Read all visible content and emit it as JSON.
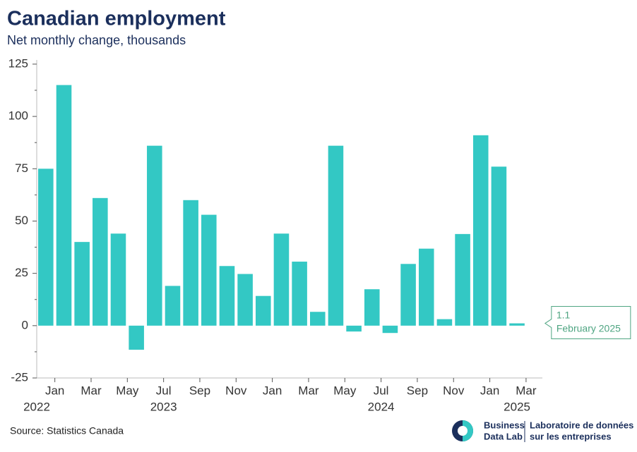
{
  "chart_data": {
    "type": "bar",
    "title": "Canadian employment",
    "subtitle": "Net monthly change, thousands",
    "x": [
      0,
      1,
      2,
      3,
      4,
      5,
      6,
      7,
      8,
      9,
      10,
      11,
      12,
      13,
      14,
      15,
      16,
      17,
      18,
      19,
      20,
      21,
      22,
      23,
      24,
      25,
      26
    ],
    "values": [
      75,
      115,
      40,
      61,
      44,
      -11.5,
      86,
      19,
      60,
      53,
      28.5,
      24.7,
      14.2,
      44,
      30.6,
      6.6,
      86,
      -2.8,
      17.4,
      -3.5,
      29.5,
      36.8,
      3.1,
      43.8,
      91,
      76,
      1.1
    ],
    "color": "#33c8c4",
    "xlim": [
      -0.5,
      27.4
    ],
    "xticks": [
      {
        "value": 0.5,
        "label": "Jan"
      },
      {
        "value": 2.5,
        "label": "Mar"
      },
      {
        "value": 4.5,
        "label": "May"
      },
      {
        "value": 6.5,
        "label": "Jul"
      },
      {
        "value": 8.5,
        "label": "Sep"
      },
      {
        "value": 10.5,
        "label": "Nov"
      },
      {
        "value": 12.5,
        "label": "Jan"
      },
      {
        "value": 14.5,
        "label": "Mar"
      },
      {
        "value": 16.5,
        "label": "May"
      },
      {
        "value": 18.5,
        "label": "Jul"
      },
      {
        "value": 20.5,
        "label": "Sep"
      },
      {
        "value": 22.5,
        "label": "Nov"
      },
      {
        "value": 24.5,
        "label": "Jan"
      },
      {
        "value": 26.5,
        "label": "Mar"
      }
    ],
    "year_labels": [
      {
        "value": -0.5,
        "label": "2022"
      },
      {
        "value": 6.5,
        "label": "2023"
      },
      {
        "value": 18.5,
        "label": "2024"
      },
      {
        "value": 26,
        "label": "2025"
      }
    ],
    "ylim": [
      -25,
      127
    ],
    "yticks": [
      -25,
      0,
      25,
      50,
      75,
      100,
      125
    ],
    "yticks_minor": [
      -12.5,
      12.5,
      37.5,
      62.5,
      87.5,
      112.5
    ],
    "annotation": {
      "value_label": "1.1",
      "label": "February 2025",
      "color": "#4fa582"
    },
    "source": "Source: Statistics Canada",
    "logo": {
      "line1": "Business",
      "line2": "Data Lab",
      "line3": "Laboratoire de données",
      "line4": "sur les entreprises"
    }
  }
}
